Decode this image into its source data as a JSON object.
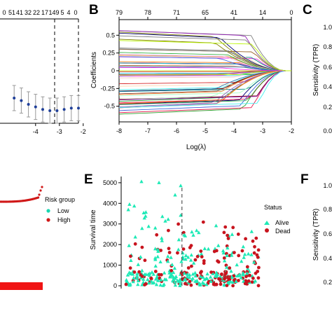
{
  "panel_labels": {
    "B": "B",
    "C": "C",
    "E": "E",
    "F": "F"
  },
  "colors": {
    "alive": "#1de9b6",
    "dead": "#c8141e",
    "high": "#d01818",
    "low": "#1ad6b0",
    "cv": "#1f3f99"
  },
  "chart_data": [
    {
      "id": "A",
      "type": "line",
      "top_ticks": [
        "0",
        "51",
        "41",
        "32",
        "22",
        "17",
        "149",
        "5",
        "4",
        "0"
      ],
      "x_ticks": [
        "-4",
        "-3",
        "-2"
      ],
      "cv_points": [
        {
          "x": -4.9,
          "y": 0.9,
          "err": 0.1
        },
        {
          "x": -4.6,
          "y": 0.88,
          "err": 0.1
        },
        {
          "x": -4.3,
          "y": 0.85,
          "err": 0.1
        },
        {
          "x": -4.0,
          "y": 0.83,
          "err": 0.1
        },
        {
          "x": -3.7,
          "y": 0.81,
          "err": 0.1
        },
        {
          "x": -3.4,
          "y": 0.8,
          "err": 0.1
        },
        {
          "x": -3.1,
          "y": 0.8,
          "err": 0.1
        },
        {
          "x": -2.8,
          "y": 0.81,
          "err": 0.1
        },
        {
          "x": -2.5,
          "y": 0.82,
          "err": 0.1
        },
        {
          "x": -2.2,
          "y": 0.82,
          "err": 0.1
        }
      ],
      "vlines": [
        -3.2,
        -2.2
      ]
    },
    {
      "id": "B",
      "type": "line",
      "xlabel": "Log(λ)",
      "ylabel": "Coefficients",
      "x_ticks": [
        -8,
        -7,
        -6,
        -5,
        -4,
        -3,
        -2
      ],
      "y_ticks": [
        0.5,
        0.25,
        0,
        -0.25,
        -0.5
      ],
      "y_tick_labels": [
        "0.5",
        "0.25",
        "0",
        "-0.25",
        "-0.5"
      ],
      "top_ticks": [
        "79",
        "78",
        "71",
        "65",
        "41",
        "14",
        "0"
      ],
      "xlim": [
        -8,
        -2
      ],
      "ylim": [
        -0.72,
        0.72
      ],
      "n_series": 60
    },
    {
      "id": "C",
      "type": "line",
      "ylabel": "Sensitivity (TPR)",
      "y_tick_labels": [
        "1.0",
        "0.8",
        "0.6",
        "0.4",
        "0.2",
        "0.0"
      ]
    },
    {
      "id": "D",
      "type": "scatter",
      "legend_title": "Risk group",
      "legend": [
        "Low",
        "High"
      ]
    },
    {
      "id": "E",
      "type": "scatter",
      "ylabel": "Survival time",
      "y_ticks": [
        0,
        1000,
        2000,
        3000,
        4000,
        5000
      ],
      "y_tick_labels": [
        "0",
        "1000",
        "2000",
        "3000",
        "4000",
        "5000"
      ],
      "ylim": [
        0,
        5200
      ],
      "legend_title": "Status",
      "legend": [
        "Alive",
        "Dead"
      ],
      "cutoff_fraction": 0.42
    },
    {
      "id": "F",
      "type": "line",
      "ylabel": "Sensitivity (TPR)",
      "y_tick_labels": [
        "1.0",
        "0.8",
        "0.6",
        "0.4",
        "0.2"
      ]
    }
  ]
}
